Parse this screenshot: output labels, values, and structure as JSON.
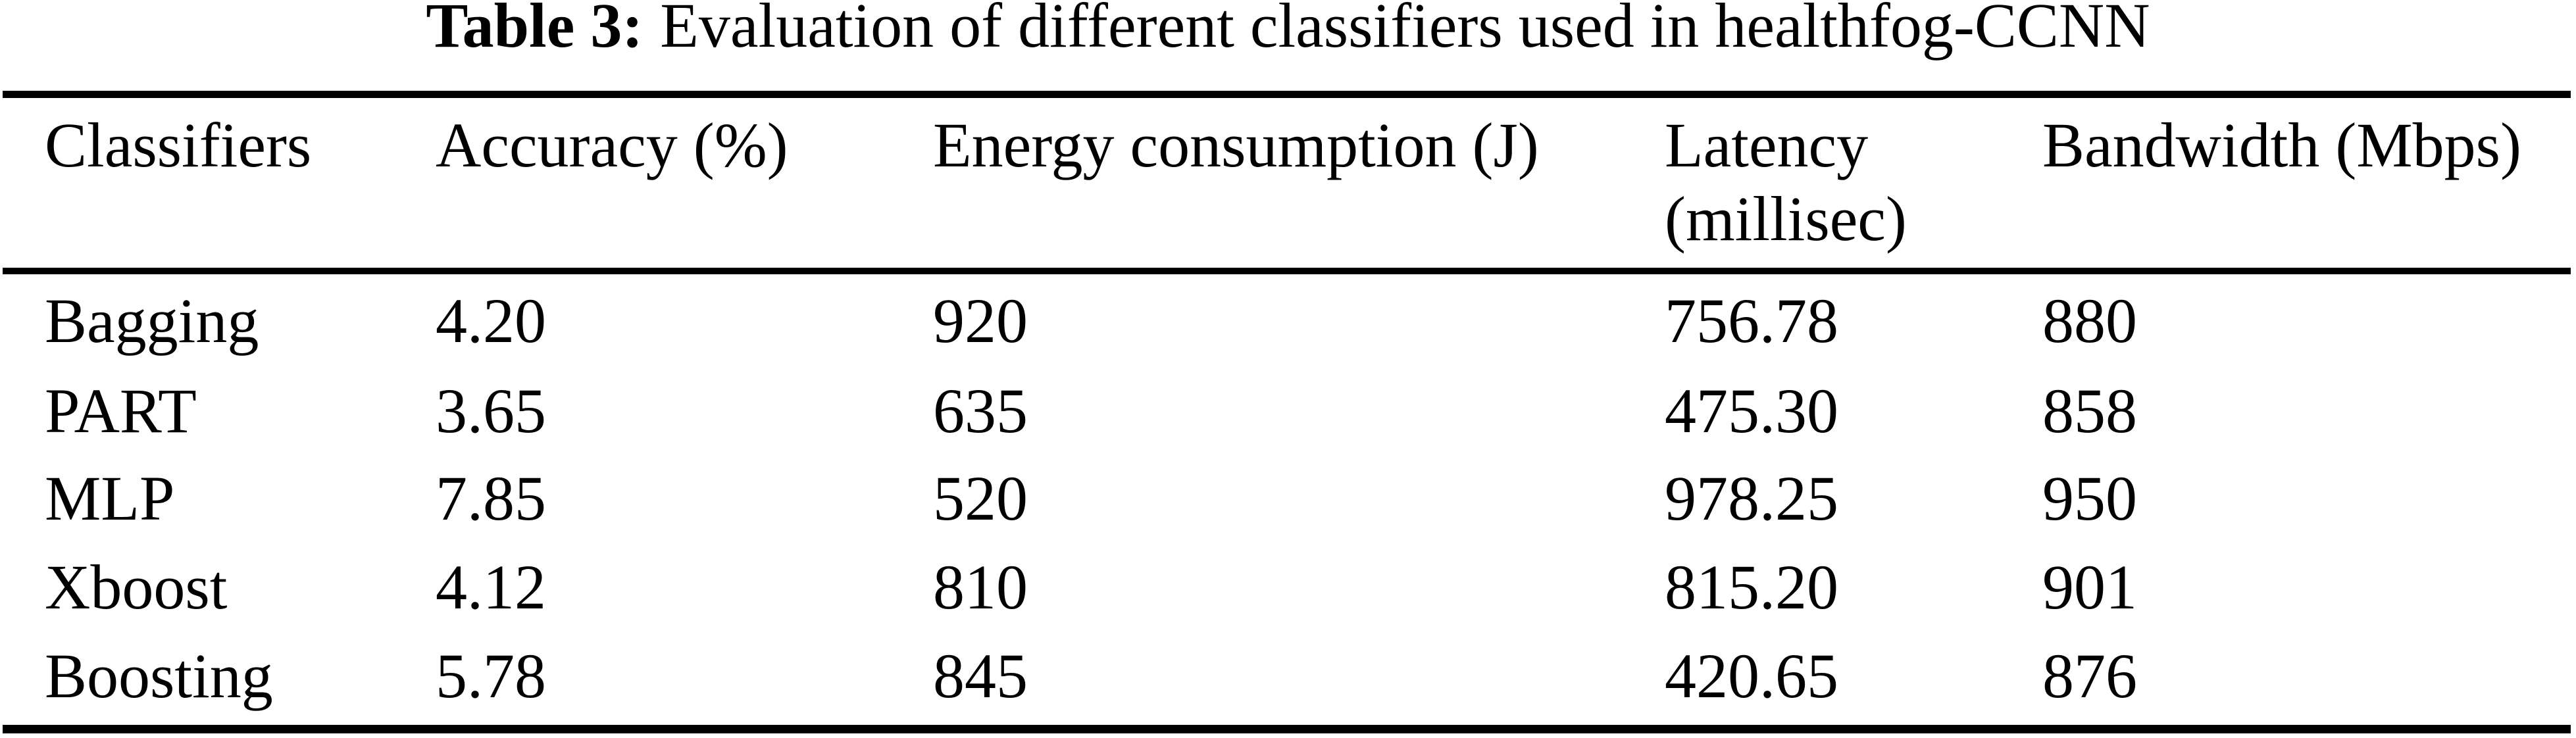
{
  "caption": {
    "label": "Table 3:",
    "text": "Evaluation of different classifiers used in healthfog-CCNN"
  },
  "table": {
    "header": {
      "classifiers": "Classifiers",
      "accuracy": "Accuracy (%)",
      "energy": "Energy consumption (J)",
      "latency_line1": "Latency",
      "latency_line2": "(millisec)",
      "bandwidth": "Bandwidth (Mbps)"
    },
    "rows": [
      {
        "classifier": "Bagging",
        "accuracy": "4.20",
        "energy": "920",
        "latency": "756.78",
        "bandwidth": "880"
      },
      {
        "classifier": "PART",
        "accuracy": "3.65",
        "energy": "635",
        "latency": "475.30",
        "bandwidth": "858"
      },
      {
        "classifier": "MLP",
        "accuracy": "7.85",
        "energy": "520",
        "latency": "978.25",
        "bandwidth": "950"
      },
      {
        "classifier": "Xboost",
        "accuracy": "4.12",
        "energy": "810",
        "latency": "815.20",
        "bandwidth": "901"
      },
      {
        "classifier": "Boosting",
        "accuracy": "5.78",
        "energy": "845",
        "latency": "420.65",
        "bandwidth": "876"
      }
    ]
  },
  "colors": {
    "text": "#000000",
    "background": "#ffffff",
    "rule": "#000000"
  }
}
